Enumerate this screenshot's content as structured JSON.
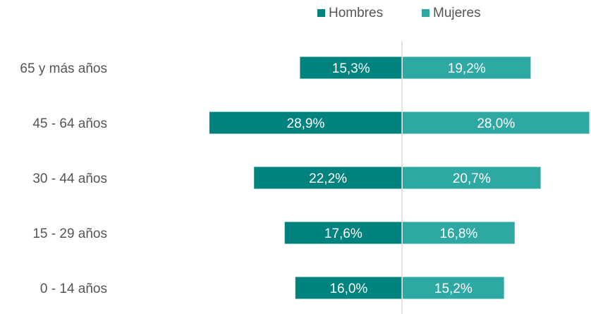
{
  "chart_data": {
    "type": "bar",
    "orientation": "horizontal-diverging",
    "title": "",
    "xlabel": "",
    "ylabel": "",
    "categories": [
      "65 y más años",
      "45 - 64 años",
      "30 - 44 años",
      "15 - 29 años",
      "0 - 14 años"
    ],
    "series": [
      {
        "name": "Hombres",
        "color": "#00827f",
        "values": [
          15.3,
          28.9,
          22.2,
          17.6,
          16.0
        ],
        "labels": [
          "15,3%",
          "28,9%",
          "22,2%",
          "17,6%",
          "16,0%"
        ]
      },
      {
        "name": "Mujeres",
        "color": "#2ea8a2",
        "values": [
          19.2,
          28.0,
          20.7,
          16.8,
          15.2
        ],
        "labels": [
          "19,2%",
          "28,0%",
          "20,7%",
          "16,8%",
          "15,2%"
        ]
      }
    ],
    "legend": "top-center",
    "grid": false,
    "axis_color": "#d9d9d9"
  }
}
